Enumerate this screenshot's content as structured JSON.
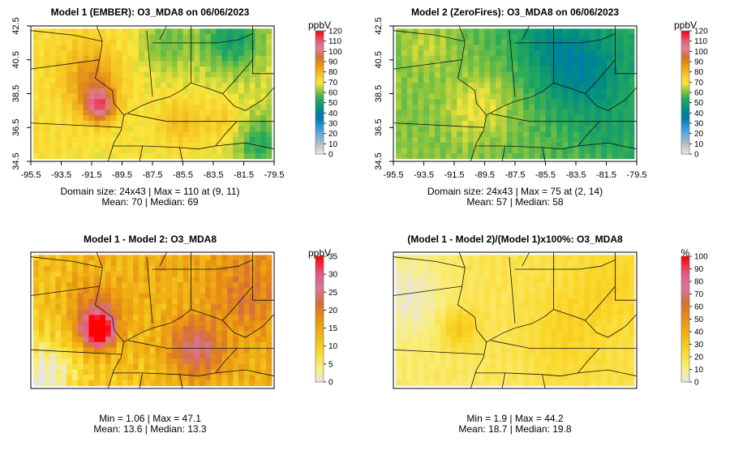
{
  "chart_data": [
    {
      "type": "heatmap",
      "title": "Model 1 (EMBER): O3_MDA8 on 06/06/2023",
      "legend_label": "ppbV",
      "legend_ticks": [
        0,
        10,
        20,
        30,
        40,
        50,
        60,
        70,
        80,
        90,
        100,
        110,
        120
      ],
      "xticks": [
        "-95.5",
        "-93.5",
        "-91.5",
        "-89.5",
        "-87.5",
        "-85.5",
        "-83.5",
        "-81.5",
        "-79.5"
      ],
      "yticks": [
        "34.5",
        "36.5",
        "38.5",
        "40.5",
        "42.5"
      ],
      "xlim": [
        -95.5,
        -79.5
      ],
      "ylim": [
        34.5,
        42.5
      ],
      "color_scale": [
        0,
        120
      ],
      "stats_line1": "Domain size: 24x43 | Max = 110 at (9, 11)",
      "stats_line2": "Mean: 70 |  Median: 69",
      "domain_size": "24x43",
      "max": 110,
      "max_at": [
        9,
        11
      ],
      "mean": 70,
      "median": 69,
      "field": {
        "base": 72,
        "gradient": [
          -5,
          0
        ],
        "features": [
          {
            "lon": -91.2,
            "lat": 37.6,
            "amp": 34,
            "sigma": 0.7
          },
          {
            "lon": -91.5,
            "lat": 38.8,
            "amp": 14,
            "sigma": 1.2
          },
          {
            "lon": -92.0,
            "lat": 40.2,
            "amp": 8,
            "sigma": 1.6
          },
          {
            "lon": -85.5,
            "lat": 36.5,
            "amp": 10,
            "sigma": 1.2
          },
          {
            "lon": -82.5,
            "lat": 36.7,
            "amp": 8,
            "sigma": 1.0
          },
          {
            "lon": -82.0,
            "lat": 42.0,
            "amp": -18,
            "sigma": 1.5
          },
          {
            "lon": -86.5,
            "lat": 41.8,
            "amp": -10,
            "sigma": 1.3
          },
          {
            "lon": -80.0,
            "lat": 35.2,
            "amp": -14,
            "sigma": 1.2
          }
        ]
      }
    },
    {
      "type": "heatmap",
      "title": "Model 2 (ZeroFires): O3_MDA8 on 06/06/2023",
      "legend_label": "ppbV",
      "legend_ticks": [
        0,
        10,
        20,
        30,
        40,
        50,
        60,
        70,
        80,
        90,
        100,
        110,
        120
      ],
      "xticks": [
        "-95.5",
        "-93.5",
        "-91.5",
        "-89.5",
        "-87.5",
        "-85.5",
        "-83.5",
        "-81.5",
        "-79.5"
      ],
      "yticks": [
        "34.5",
        "36.5",
        "38.5",
        "40.5",
        "42.5"
      ],
      "xlim": [
        -95.5,
        -79.5
      ],
      "ylim": [
        34.5,
        42.5
      ],
      "color_scale": [
        0,
        120
      ],
      "stats_line1": "Domain size: 24x43 | Max = 75 at (2, 14)",
      "stats_line2": "Mean: 57 |  Median: 58",
      "domain_size": "24x43",
      "max": 75,
      "max_at": [
        2,
        14
      ],
      "mean": 57,
      "median": 58,
      "field": {
        "base": 62,
        "gradient": [
          -6,
          -2
        ],
        "features": [
          {
            "lon": -90.0,
            "lat": 37.5,
            "amp": 10,
            "sigma": 1.6
          },
          {
            "lon": -93.5,
            "lat": 41.5,
            "amp": 6,
            "sigma": 1.3
          },
          {
            "lon": -83.0,
            "lat": 40.0,
            "amp": -16,
            "sigma": 2.0
          },
          {
            "lon": -85.5,
            "lat": 42.0,
            "amp": -8,
            "sigma": 1.5
          },
          {
            "lon": -81.0,
            "lat": 36.0,
            "amp": -4,
            "sigma": 1.5
          }
        ]
      }
    },
    {
      "type": "heatmap",
      "title": "Model 1 - Model 2: O3_MDA8",
      "legend_label": "ppbV",
      "legend_ticks": [
        0,
        5,
        10,
        15,
        20,
        25,
        30,
        35
      ],
      "color_scale": [
        0,
        35
      ],
      "stats_line1": "Min = 1.06 | Max = 47.1",
      "stats_line2": "Mean: 13.6 |  Median: 13.3",
      "min": 1.06,
      "max": 47.1,
      "mean": 13.6,
      "median": 13.3,
      "field": {
        "base": 10,
        "gradient": [
          4,
          2
        ],
        "features": [
          {
            "lon": -91.3,
            "lat": 37.7,
            "amp": 30,
            "sigma": 0.7
          },
          {
            "lon": -91.4,
            "lat": 38.9,
            "amp": 10,
            "sigma": 1.3
          },
          {
            "lon": -84.5,
            "lat": 36.6,
            "amp": 12,
            "sigma": 1.3
          },
          {
            "lon": -81.0,
            "lat": 40.0,
            "amp": 6,
            "sigma": 1.5
          },
          {
            "lon": -95.0,
            "lat": 35.0,
            "amp": -10,
            "sigma": 1.5
          }
        ]
      }
    },
    {
      "type": "heatmap",
      "title": "(Model 1 - Model 2)/(Model 1)x100%: O3_MDA8",
      "legend_label": "%",
      "legend_ticks": [
        0,
        10,
        20,
        30,
        40,
        50,
        60,
        70,
        80,
        90,
        100
      ],
      "color_scale": [
        0,
        100
      ],
      "stats_line1": "Min = 1.9 | Max = 44.2",
      "stats_line2": "Mean: 18.7 |  Median: 19.8",
      "min": 1.9,
      "max": 44.2,
      "mean": 18.7,
      "median": 19.8,
      "field": {
        "base": 14,
        "gradient": [
          6,
          2
        ],
        "features": [
          {
            "lon": -91.4,
            "lat": 37.9,
            "amp": 16,
            "sigma": 0.9
          },
          {
            "lon": -84.0,
            "lat": 37.5,
            "amp": 8,
            "sigma": 1.8
          },
          {
            "lon": -81.0,
            "lat": 40.5,
            "amp": 6,
            "sigma": 1.5
          },
          {
            "lon": -95.0,
            "lat": 40.0,
            "amp": -12,
            "sigma": 2.0
          }
        ]
      }
    }
  ]
}
